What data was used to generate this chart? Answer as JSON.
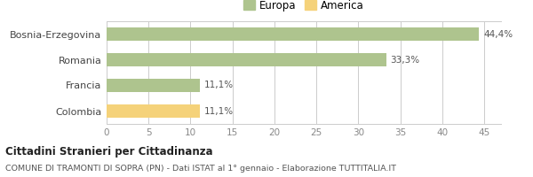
{
  "categories": [
    "Bosnia-Erzegovina",
    "Romania",
    "Francia",
    "Colombia"
  ],
  "values": [
    44.4,
    33.3,
    11.1,
    11.1
  ],
  "colors": [
    "#aec48e",
    "#aec48e",
    "#aec48e",
    "#f5d27a"
  ],
  "bar_labels": [
    "44,4%",
    "33,3%",
    "11,1%",
    "11,1%"
  ],
  "legend_labels": [
    "Europa",
    "America"
  ],
  "legend_colors": [
    "#aec48e",
    "#f5d27a"
  ],
  "xlim": [
    0,
    47
  ],
  "xticks": [
    0,
    5,
    10,
    15,
    20,
    25,
    30,
    35,
    40,
    45
  ],
  "title_bold": "Cittadini Stranieri per Cittadinanza",
  "subtitle": "COMUNE DI TRAMONTI DI SOPRA (PN) - Dati ISTAT al 1° gennaio - Elaborazione TUTTITALIA.IT",
  "background_color": "#ffffff",
  "bar_height": 0.52,
  "grid_color": "#cccccc"
}
